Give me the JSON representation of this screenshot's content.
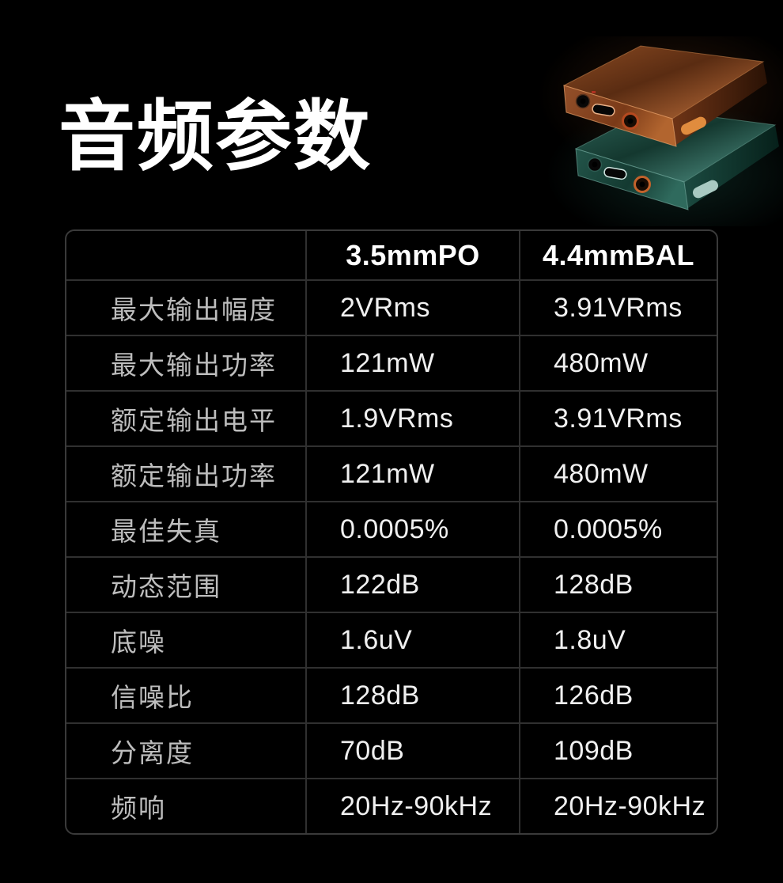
{
  "page": {
    "title": "音频参数",
    "background_color": "#000000"
  },
  "hero": {
    "top_device_name": "copper-portable-dac-amp",
    "top_device_color": "#b5672f",
    "bottom_device_name": "green-portable-dac-amp",
    "bottom_device_color": "#1f5148",
    "jack_ring_color": "#c2622b"
  },
  "table": {
    "headers": [
      "",
      "3.5mmPO",
      "4.4mmBAL"
    ],
    "rows": [
      {
        "label": "最大输出幅度",
        "po": "2VRms",
        "bal": "3.91VRms"
      },
      {
        "label": "最大输出功率",
        "po": "121mW",
        "bal": "480mW"
      },
      {
        "label": "额定输出电平",
        "po": "1.9VRms",
        "bal": "3.91VRms"
      },
      {
        "label": "额定输出功率",
        "po": "121mW",
        "bal": "480mW"
      },
      {
        "label": "最佳失真",
        "po": "0.0005%",
        "bal": "0.0005%"
      },
      {
        "label": "动态范围",
        "po": "122dB",
        "bal": "128dB"
      },
      {
        "label": "底噪",
        "po": "1.6uV",
        "bal": "1.8uV"
      },
      {
        "label": "信噪比",
        "po": "128dB",
        "bal": "126dB"
      },
      {
        "label": "分离度",
        "po": "70dB",
        "bal": "109dB"
      },
      {
        "label": "频响",
        "po": "20Hz-90kHz",
        "bal": "20Hz-90kHz"
      }
    ],
    "style": {
      "border_color": "#3a3a3a",
      "grid_line_color": "#303030",
      "label_color": "#bdbdbd",
      "value_color": "#f0f0f0",
      "header_color": "#ffffff"
    }
  }
}
